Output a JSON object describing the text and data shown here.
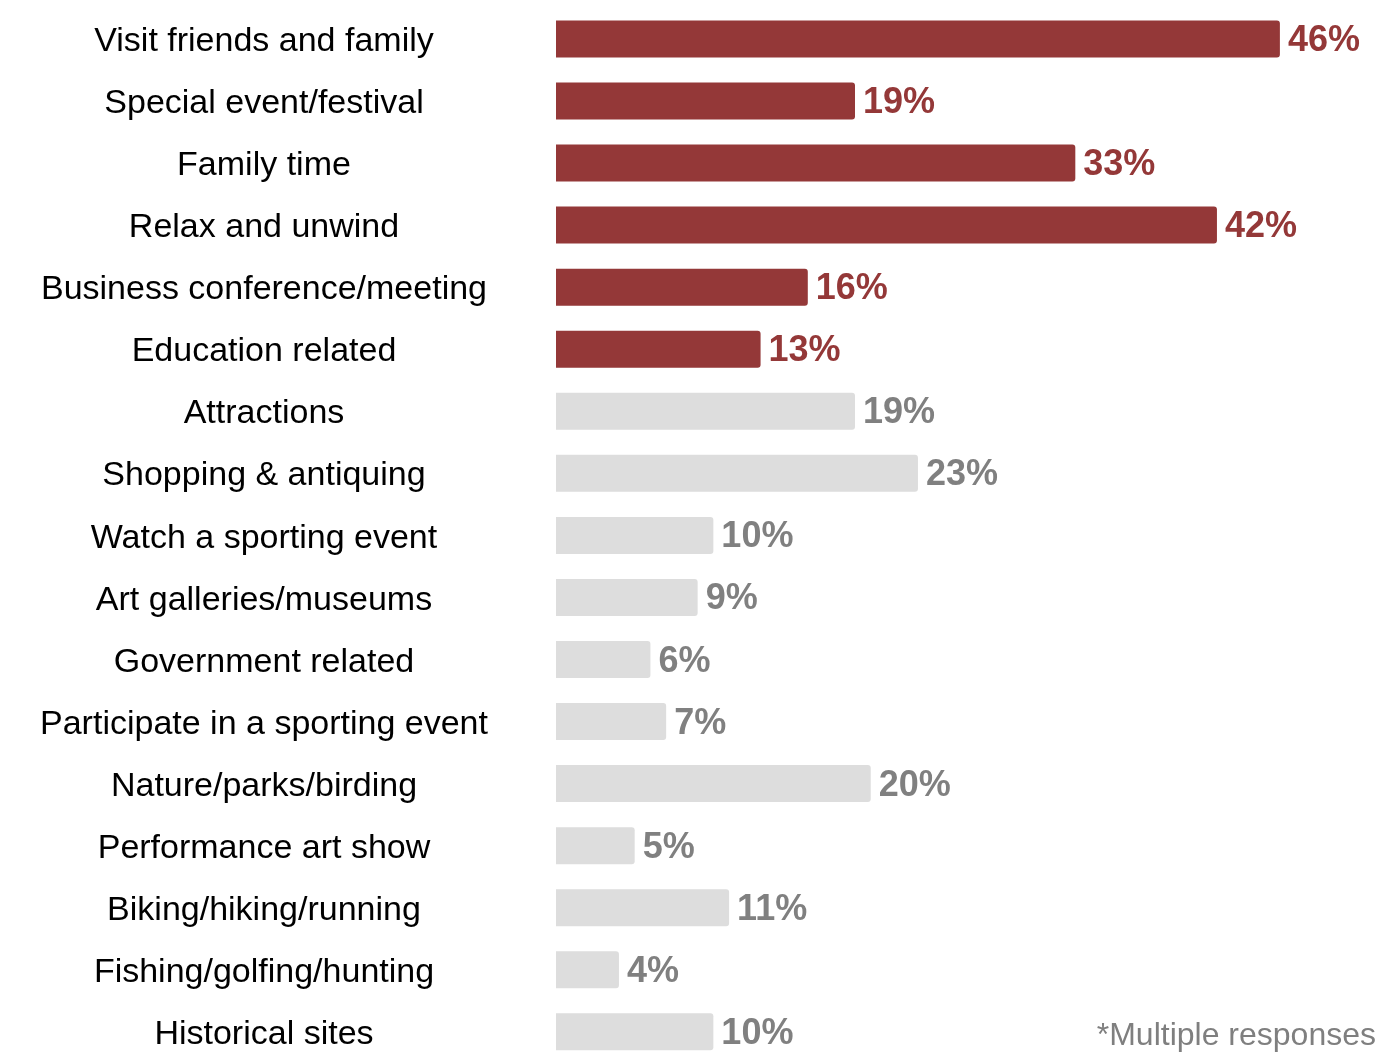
{
  "chart_data": {
    "type": "bar",
    "orientation": "horizontal",
    "categories": [
      "Visit friends and family",
      "Special event/festival",
      "Family time",
      "Relax and unwind",
      "Business conference/meeting",
      "Education related",
      "Attractions",
      "Shopping & antiquing",
      "Watch a sporting event",
      "Art galleries/museums",
      "Government related",
      "Participate in a sporting event",
      "Nature/parks/birding",
      "Performance art show",
      "Biking/hiking/running",
      "Fishing/golfing/hunting",
      "Historical sites"
    ],
    "values": [
      46,
      19,
      33,
      42,
      16,
      13,
      19,
      23,
      10,
      9,
      6,
      7,
      20,
      5,
      11,
      4,
      10
    ],
    "value_labels": [
      "46%",
      "19%",
      "33%",
      "42%",
      "16%",
      "13%",
      "19%",
      "23%",
      "10%",
      "9%",
      "6%",
      "7%",
      "20%",
      "5%",
      "11%",
      "4%",
      "10%"
    ],
    "colors": [
      "#943838",
      "#943838",
      "#943838",
      "#943838",
      "#943838",
      "#943838",
      "#dddddd",
      "#dddddd",
      "#dddddd",
      "#dddddd",
      "#dddddd",
      "#dddddd",
      "#dddddd",
      "#dddddd",
      "#dddddd",
      "#dddddd",
      "#dddddd"
    ],
    "annotations": [
      "*Multiple responses"
    ]
  }
}
